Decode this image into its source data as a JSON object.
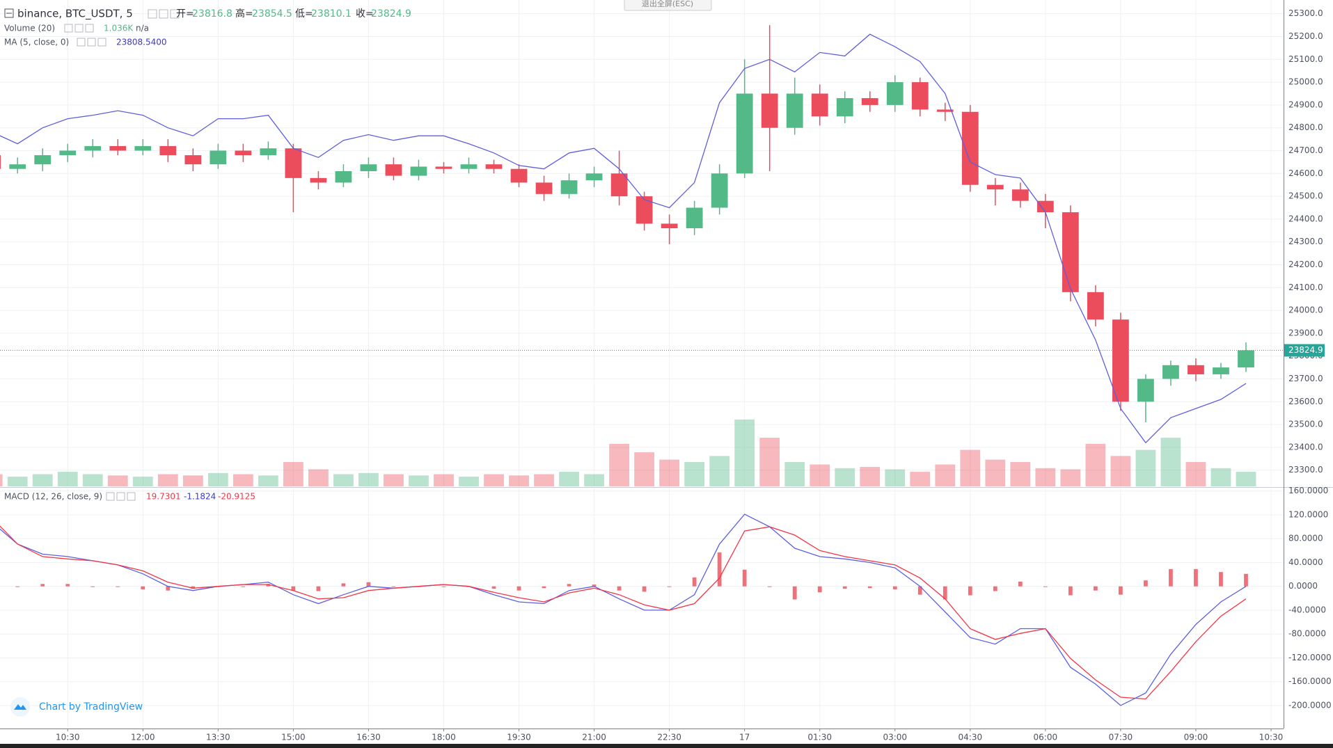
{
  "legend": {
    "symbol": "binance, BTC_USDT, 5",
    "open_label": "开=",
    "open": 23816.8,
    "high_label": "高=",
    "high": 23854.5,
    "low_label": "低=",
    "low": 23810.1,
    "close_label": "收=",
    "volume_title": "Volume (20)",
    "volume_value": "1.036K",
    "volume_ma": "n/a",
    "ma_title": "MA (5, close, 0)",
    "ma_value": "23808.5400",
    "macd_title": "MACD (12, 26, close, 9)",
    "macd_hist": "19.7301",
    "macd_macd": "-1.1824",
    "macd_signal": "-20.9125",
    "exit_fullscreen": "退出全屏(ESC)",
    "branding": "Chart by TradingView"
  },
  "chart_data": [
    {
      "type": "candlestick",
      "up_color": "#53b987",
      "down_color": "#eb4d5c",
      "last_price": 23824.9,
      "last_price_color": "#26a69a",
      "xlim": [
        549,
        2085
      ],
      "ylim": [
        23229,
        25360
      ],
      "grid": true,
      "yticks": [
        {
          "value": 23300,
          "label": "23300.0"
        },
        {
          "value": 23400,
          "label": "23400.0"
        },
        {
          "value": 23500,
          "label": "23500.0"
        },
        {
          "value": 23600,
          "label": "23600.0"
        },
        {
          "value": 23700,
          "label": "23700.0"
        },
        {
          "value": 23800,
          "label": "23800.0"
        },
        {
          "value": 23900,
          "label": "23900.0"
        },
        {
          "value": 24000,
          "label": "24000.0"
        },
        {
          "value": 24100,
          "label": "24100.0"
        },
        {
          "value": 24200,
          "label": "24200.0"
        },
        {
          "value": 24300,
          "label": "24300.0"
        },
        {
          "value": 24400,
          "label": "24400.0"
        },
        {
          "value": 24500,
          "label": "24500.0"
        },
        {
          "value": 24600,
          "label": "24600.0"
        },
        {
          "value": 24700,
          "label": "24700.0"
        },
        {
          "value": 24800,
          "label": "24800.0"
        },
        {
          "value": 24900,
          "label": "24900.0"
        },
        {
          "value": 25000,
          "label": "25000.0"
        },
        {
          "value": 25100,
          "label": "25100.0"
        },
        {
          "value": 25200,
          "label": "25200.0"
        },
        {
          "value": 25300,
          "label": "25300.0"
        }
      ],
      "x": [
        540,
        570,
        600,
        630,
        660,
        690,
        720,
        750,
        780,
        810,
        840,
        870,
        900,
        930,
        960,
        990,
        1020,
        1050,
        1080,
        1110,
        1140,
        1170,
        1200,
        1230,
        1260,
        1290,
        1320,
        1350,
        1380,
        1410,
        1440,
        1470,
        1500,
        1530,
        1560,
        1590,
        1620,
        1650,
        1680,
        1710,
        1740,
        1770,
        1800,
        1830,
        1860,
        1890,
        1920,
        1950,
        1980,
        2010,
        2040
      ],
      "open": [
        24680,
        24620,
        24640,
        24680,
        24700,
        24720,
        24700,
        24720,
        24680,
        24640,
        24700,
        24680,
        24710,
        24580,
        24560,
        24610,
        24640,
        24590,
        24630,
        24620,
        24640,
        24620,
        24560,
        24510,
        24570,
        24600,
        24500,
        24380,
        24360,
        24450,
        24600,
        24950,
        24800,
        24950,
        24850,
        24930,
        24900,
        25000,
        24880,
        24870,
        24550,
        24530,
        24480,
        24430,
        24080,
        23960,
        23600,
        23700,
        23760,
        23720,
        23750
      ],
      "high": [
        24720,
        24670,
        24710,
        24730,
        24750,
        24750,
        24750,
        24750,
        24710,
        24730,
        24730,
        24740,
        24730,
        24610,
        24640,
        24670,
        24670,
        24660,
        24650,
        24670,
        24660,
        24640,
        24590,
        24600,
        24630,
        24700,
        24520,
        24420,
        24480,
        24640,
        25100,
        25250,
        25020,
        24990,
        24960,
        24960,
        25030,
        25020,
        24910,
        24900,
        24580,
        24560,
        24510,
        24460,
        24110,
        23990,
        23720,
        23780,
        23790,
        23770,
        23860
      ],
      "low": [
        24590,
        24600,
        24610,
        24650,
        24670,
        24680,
        24680,
        24650,
        24610,
        24620,
        24650,
        24660,
        24430,
        24530,
        24540,
        24580,
        24570,
        24570,
        24600,
        24600,
        24600,
        24540,
        24480,
        24490,
        24540,
        24460,
        24350,
        24290,
        24330,
        24420,
        24580,
        24610,
        24770,
        24810,
        24820,
        24870,
        24870,
        24850,
        24830,
        24520,
        24460,
        24450,
        24360,
        24040,
        23930,
        23560,
        23510,
        23670,
        23690,
        23700,
        23730
      ],
      "close": [
        24620,
        24640,
        24680,
        24700,
        24720,
        24700,
        24720,
        24680,
        24640,
        24700,
        24680,
        24710,
        24580,
        24560,
        24610,
        24640,
        24590,
        24630,
        24620,
        24640,
        24620,
        24560,
        24510,
        24570,
        24600,
        24500,
        24380,
        24360,
        24450,
        24600,
        24950,
        24800,
        24950,
        24850,
        24930,
        24900,
        25000,
        24880,
        24870,
        24550,
        24530,
        24480,
        24430,
        24080,
        23960,
        23600,
        23700,
        23760,
        23720,
        23750,
        23825
      ],
      "volume": {
        "ylim": [
          0,
          4
        ],
        "values": [
          0.1,
          0.08,
          0.1,
          0.12,
          0.1,
          0.09,
          0.08,
          0.1,
          0.09,
          0.11,
          0.1,
          0.09,
          0.2,
          0.14,
          0.1,
          0.11,
          0.1,
          0.09,
          0.1,
          0.08,
          0.1,
          0.09,
          0.1,
          0.12,
          0.1,
          0.35,
          0.28,
          0.22,
          0.2,
          0.25,
          0.55,
          0.4,
          0.2,
          0.18,
          0.15,
          0.16,
          0.14,
          0.12,
          0.18,
          0.3,
          0.22,
          0.2,
          0.15,
          0.14,
          0.35,
          0.25,
          0.3,
          0.4,
          0.2,
          0.15,
          0.12
        ]
      },
      "ma": {
        "color": "#5d5fe0",
        "values": [
          24780,
          24730,
          24800,
          24840,
          24855,
          24875,
          24855,
          24800,
          24765,
          24840,
          24840,
          24855,
          24710,
          24670,
          24745,
          24770,
          24745,
          24765,
          24765,
          24730,
          24690,
          24635,
          24620,
          24690,
          24710,
          24620,
          24485,
          24450,
          24560,
          24910,
          25060,
          25100,
          25045,
          25130,
          25115,
          25210,
          25155,
          25090,
          24950,
          24650,
          24595,
          24580,
          24430,
          24095,
          23870,
          23570,
          23420,
          23530,
          23570,
          23610,
          23680
        ]
      }
    },
    {
      "type": "macd",
      "xlim": [
        549,
        2085
      ],
      "ylim": [
        -238.6,
        164.3
      ],
      "grid": true,
      "x": [
        540,
        570,
        600,
        630,
        660,
        690,
        720,
        750,
        780,
        810,
        840,
        870,
        900,
        930,
        960,
        990,
        1020,
        1050,
        1080,
        1110,
        1140,
        1170,
        1200,
        1230,
        1260,
        1290,
        1320,
        1350,
        1380,
        1410,
        1440,
        1470,
        1500,
        1530,
        1560,
        1590,
        1620,
        1650,
        1680,
        1710,
        1740,
        1770,
        1800,
        1830,
        1860,
        1890,
        1920,
        1950,
        1980,
        2010,
        2040
      ],
      "xticks": [
        {
          "value": 630,
          "label": "10:30"
        },
        {
          "value": 720,
          "label": "12:00"
        },
        {
          "value": 810,
          "label": "13:30"
        },
        {
          "value": 900,
          "label": "15:00"
        },
        {
          "value": 990,
          "label": "16:30"
        },
        {
          "value": 1080,
          "label": "18:00"
        },
        {
          "value": 1170,
          "label": "19:30"
        },
        {
          "value": 1260,
          "label": "21:00"
        },
        {
          "value": 1350,
          "label": "22:30"
        },
        {
          "value": 1440,
          "label": "17"
        },
        {
          "value": 1530,
          "label": "01:30"
        },
        {
          "value": 1620,
          "label": "03:00"
        },
        {
          "value": 1710,
          "label": "04:30"
        },
        {
          "value": 1800,
          "label": "06:00"
        },
        {
          "value": 1890,
          "label": "07:30"
        },
        {
          "value": 1980,
          "label": "09:00"
        },
        {
          "value": 2070,
          "label": "10:30"
        }
      ],
      "yticks": [
        {
          "value": 160,
          "label": "160.0000"
        },
        {
          "value": 120,
          "label": "120.0000"
        },
        {
          "value": 80,
          "label": "80.0000"
        },
        {
          "value": 40,
          "label": "40.0000"
        },
        {
          "value": 0,
          "label": "0.0000"
        },
        {
          "value": -40,
          "label": "-40.0000"
        },
        {
          "value": -80,
          "label": "-80.0000"
        },
        {
          "value": -120,
          "label": "-120.0000"
        },
        {
          "value": -160,
          "label": "-160.0000"
        },
        {
          "value": -200,
          "label": "-200.0000"
        }
      ],
      "histogram": {
        "color": "#f0707a",
        "values": [
          -7,
          0,
          4,
          4,
          0,
          0,
          -5,
          -7,
          -4,
          0,
          0,
          4,
          -7,
          -8,
          5,
          7,
          0,
          0,
          0,
          0,
          -4,
          -7,
          -3,
          4,
          3,
          -7,
          -9,
          0,
          15,
          57,
          28,
          0,
          -22,
          -10,
          -4,
          -3,
          -5,
          -14,
          -22,
          -15,
          -8,
          8,
          0,
          -15,
          -7,
          -14,
          10,
          29,
          29,
          24,
          21
        ]
      },
      "macd": {
        "color": "#5d5fe0",
        "values": [
          107,
          71,
          54,
          50,
          43,
          36,
          21,
          0,
          -7,
          0,
          3,
          7,
          -14,
          -29,
          -14,
          0,
          -3,
          0,
          3,
          0,
          -14,
          -26,
          -29,
          -7,
          0,
          -21,
          -40,
          -40,
          -14,
          71,
          121,
          100,
          64,
          50,
          46,
          40,
          31,
          0,
          -43,
          -86,
          -97,
          -71,
          -71,
          -136,
          -164,
          -200,
          -179,
          -114,
          -64,
          -26,
          0
        ]
      },
      "signal": {
        "color": "#f23645",
        "values": [
          114,
          71,
          50,
          46,
          43,
          36,
          26,
          7,
          -3,
          0,
          3,
          3,
          -7,
          -21,
          -19,
          -7,
          -3,
          0,
          3,
          0,
          -10,
          -19,
          -26,
          -11,
          -3,
          -14,
          -31,
          -40,
          -29,
          14,
          93,
          100,
          86,
          60,
          50,
          43,
          36,
          14,
          -21,
          -71,
          -89,
          -79,
          -71,
          -121,
          -157,
          -186,
          -189,
          -143,
          -93,
          -50,
          -21
        ]
      }
    }
  ]
}
